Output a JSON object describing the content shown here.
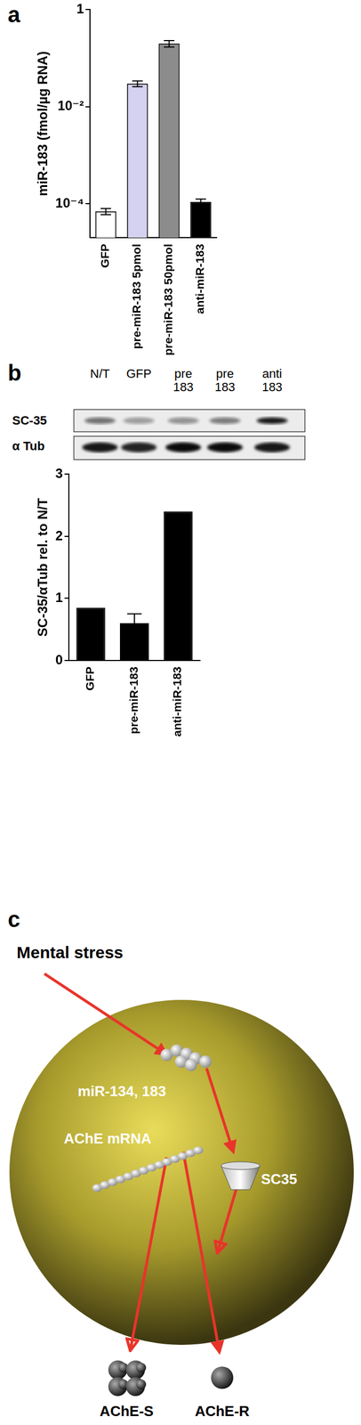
{
  "panel_labels": [
    "a",
    "b",
    "c"
  ],
  "chart_data": [
    {
      "type": "bar",
      "categories": [
        "GFP",
        "pre-miR-183 5pmol",
        "pre-miR-183 50pmol",
        "anti-miR-183"
      ],
      "values": [
        7e-05,
        0.03,
        0.2,
        0.00011
      ],
      "errors": [
        1e-05,
        0.004,
        0.03,
        1.5e-05
      ],
      "colors": [
        "#ffffff",
        "#d4d2f0",
        "#8c8c8c",
        "#000000"
      ],
      "y_label": "miR-183 (fmol/µg RNA)",
      "log": "y",
      "ylim": [
        2e-05,
        1
      ],
      "yticks": [
        {
          "value": 0.0001,
          "label": "10⁻⁴"
        },
        {
          "value": 0.01,
          "label": "10⁻²"
        },
        1
      ],
      "grid": false
    },
    {
      "type": "bar",
      "categories": [
        "GFP",
        "pre-miR-183",
        "anti-miR-183"
      ],
      "values": [
        0.85,
        0.6,
        2.4
      ],
      "errors": [
        null,
        0.15,
        null
      ],
      "color": "#000000",
      "y_label": "SC-35/αTub rel. to N/T",
      "ylim": [
        0,
        3
      ],
      "yticks": [
        0,
        1,
        2,
        3
      ],
      "grid": false
    }
  ],
  "blot": {
    "lanes": [
      "N/T",
      "GFP",
      "pre\n183",
      "pre\n183",
      "anti\n183"
    ],
    "rows": [
      "SC-35",
      "α Tub"
    ]
  },
  "diagram": {
    "stimulus": "Mental stress",
    "mirna": "miR-134, 183",
    "mrna": "AChE mRNA",
    "factor": "SC35",
    "products": [
      "AChE-S",
      "AChE-R"
    ]
  }
}
